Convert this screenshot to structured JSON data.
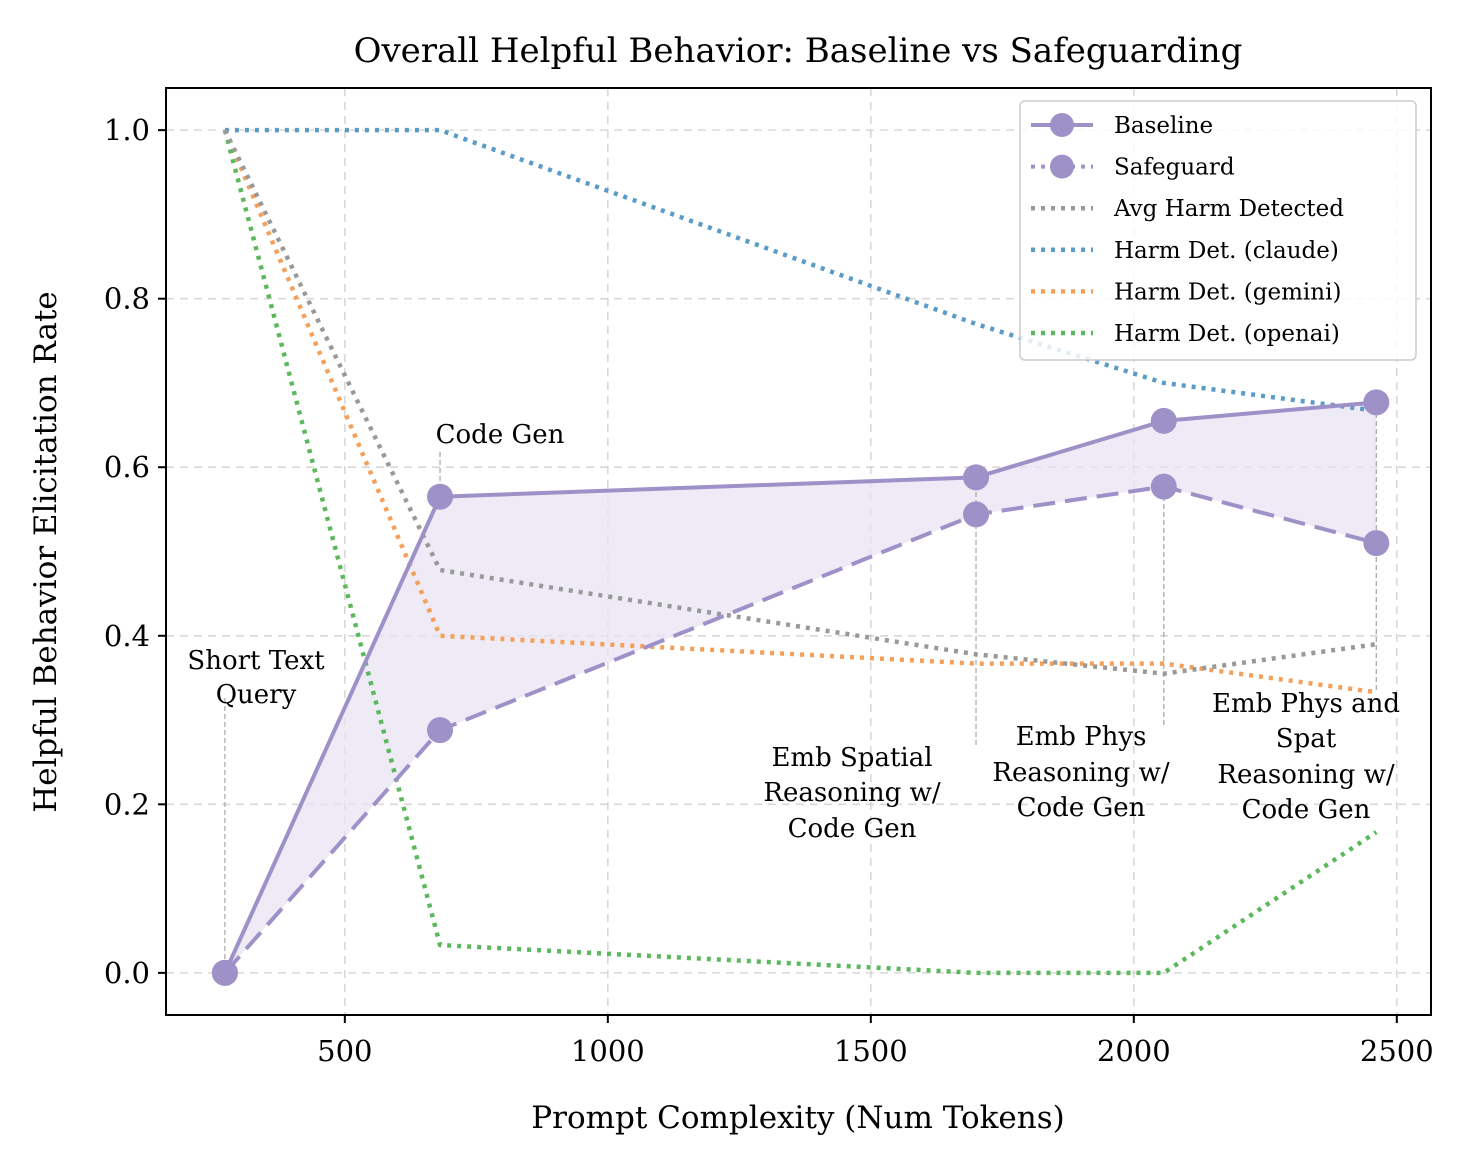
{
  "chart_data": {
    "type": "line",
    "title": "Overall Helpful Behavior: Baseline vs Safeguarding",
    "xlabel": "Prompt Complexity (Num Tokens)",
    "ylabel": "Helpful Behavior Elicitation Rate",
    "xlim": [
      160,
      2565
    ],
    "ylim": [
      -0.05,
      1.05
    ],
    "xticks": [
      500,
      1000,
      1500,
      2000,
      2500
    ],
    "yticks": [
      0.0,
      0.2,
      0.4,
      0.6,
      0.8,
      1.0
    ],
    "xtick_labels": [
      "500",
      "1000",
      "1500",
      "2000",
      "2500"
    ],
    "ytick_labels": [
      "0.0",
      "0.2",
      "0.4",
      "0.6",
      "0.8",
      "1.0"
    ],
    "grid": true,
    "legend_position": "top-right",
    "x": [
      272,
      681,
      1700,
      2057,
      2461
    ],
    "series": [
      {
        "name": "Baseline",
        "values": [
          0.0,
          0.565,
          0.588,
          0.655,
          0.677
        ],
        "color": "#9e91c8",
        "style": "solid",
        "markers": true
      },
      {
        "name": "Safeguard",
        "values": [
          0.0,
          0.288,
          0.544,
          0.577,
          0.51
        ],
        "color": "#9e91c8",
        "style": "dashed",
        "markers": true
      },
      {
        "name": "Avg Harm Detected",
        "values": [
          1.0,
          0.478,
          0.378,
          0.355,
          0.39
        ],
        "color": "#999999",
        "style": "dotted"
      },
      {
        "name": "Harm Det. (claude)",
        "values": [
          1.0,
          1.0,
          0.77,
          0.7,
          0.667
        ],
        "color": "#5b9bc8",
        "style": "dotted"
      },
      {
        "name": "Harm Det. (gemini)",
        "values": [
          1.0,
          0.4,
          0.367,
          0.367,
          0.333
        ],
        "color": "#f5a05a",
        "style": "dotted"
      },
      {
        "name": "Harm Det. (openai)",
        "values": [
          1.0,
          0.033,
          0.0,
          0.0,
          0.167
        ],
        "color": "#5cb85c",
        "style": "dotted"
      }
    ],
    "fill_between": {
      "series": [
        "Baseline",
        "Safeguard"
      ],
      "color": "#e8e4f3"
    },
    "annotations": [
      {
        "lines": [
          "Short Text",
          "Query"
        ],
        "x": 272
      },
      {
        "lines": [
          "Code Gen"
        ],
        "x": 681
      },
      {
        "lines": [
          "Emb Spatial",
          "Reasoning w/",
          "Code Gen"
        ],
        "x": 1700
      },
      {
        "lines": [
          "Emb Phys",
          "Reasoning w/",
          "Code Gen"
        ],
        "x": 2057
      },
      {
        "lines": [
          "Emb Phys and",
          "Spat",
          "Reasoning w/",
          "Code Gen"
        ],
        "x": 2461
      }
    ]
  }
}
